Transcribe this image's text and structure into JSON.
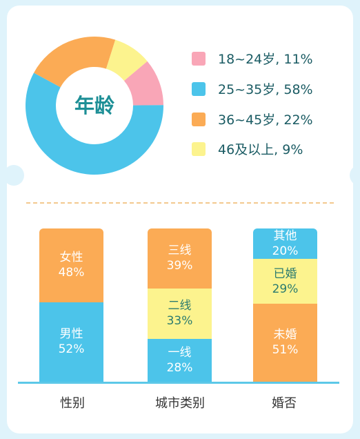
{
  "chart_data": [
    {
      "type": "pie",
      "title": "年龄",
      "slices": [
        {
          "label": "18~24岁, 11%",
          "value": 11,
          "color": "#f9a6b7"
        },
        {
          "label": "25~35岁, 58%",
          "value": 58,
          "color": "#4cc4ea"
        },
        {
          "label": "36~45岁, 22%",
          "value": 22,
          "color": "#fbab55"
        },
        {
          "label": "46及以上, 9%",
          "value": 9,
          "color": "#fcf38e"
        }
      ]
    },
    {
      "type": "bar",
      "stacked": true,
      "ylim": [
        0,
        100
      ],
      "categories": [
        {
          "name": "性别",
          "segments": [
            {
              "label": "男性",
              "pct": "52%",
              "value": 52,
              "color": "#4cc4ea"
            },
            {
              "label": "女性",
              "pct": "48%",
              "value": 48,
              "color": "#fbab55"
            }
          ]
        },
        {
          "name": "城市类别",
          "segments": [
            {
              "label": "一线",
              "pct": "28%",
              "value": 28,
              "color": "#4cc4ea"
            },
            {
              "label": "二线",
              "pct": "33%",
              "value": 33,
              "color": "#fcf38e"
            },
            {
              "label": "三线",
              "pct": "39%",
              "value": 39,
              "color": "#fbab55"
            }
          ]
        },
        {
          "name": "婚否",
          "segments": [
            {
              "label": "未婚",
              "pct": "51%",
              "value": 51,
              "color": "#fbab55"
            },
            {
              "label": "已婚",
              "pct": "29%",
              "value": 29,
              "color": "#fcf38e"
            },
            {
              "label": "其他",
              "pct": "20%",
              "value": 20,
              "color": "#4cc4ea"
            }
          ]
        }
      ]
    }
  ]
}
